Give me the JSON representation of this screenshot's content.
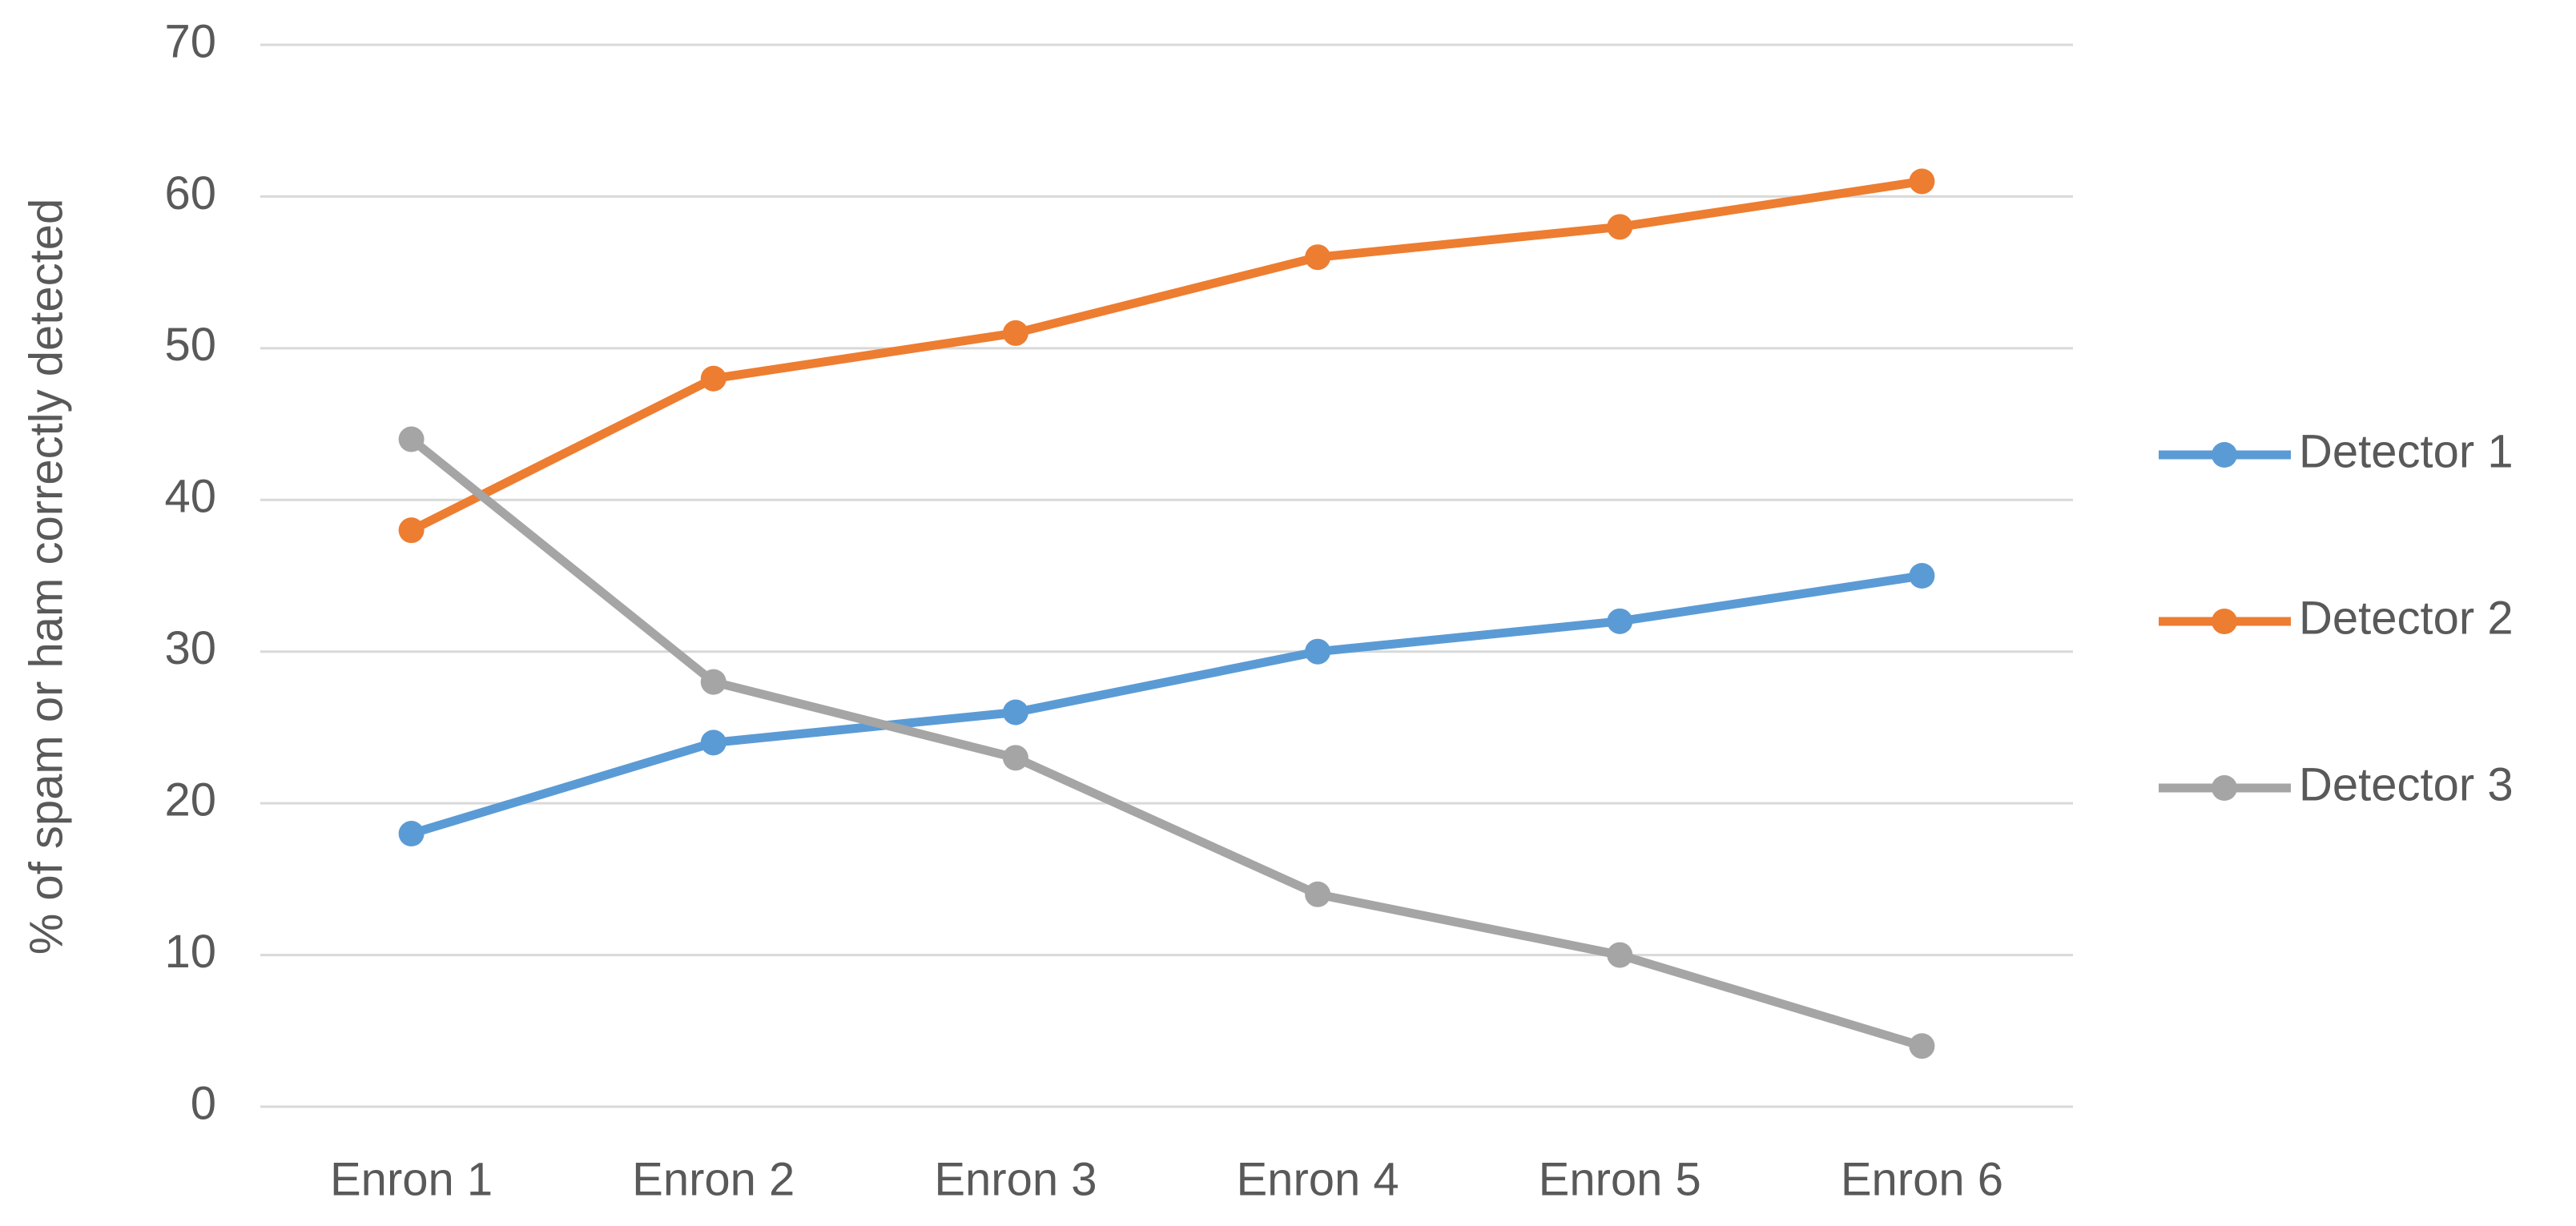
{
  "chart_data": {
    "type": "line",
    "y_label": "% of spam or ham correctly detected",
    "categories": [
      "Enron 1",
      "Enron 2",
      "Enron 3",
      "Enron 4",
      "Enron 5",
      "Enron 6"
    ],
    "series": [
      {
        "name": "Detector 1",
        "color": "#5b9bd5",
        "values": [
          18,
          24,
          26,
          30,
          32,
          35
        ]
      },
      {
        "name": "Detector 2",
        "color": "#ed7d31",
        "values": [
          38,
          48,
          51,
          56,
          58,
          61
        ]
      },
      {
        "name": "Detector 3",
        "color": "#a5a5a5",
        "values": [
          44,
          28,
          23,
          14,
          10,
          4
        ]
      }
    ],
    "ylim": [
      0,
      70
    ],
    "yticks": [
      0,
      10,
      20,
      30,
      40,
      50,
      60,
      70
    ],
    "grid": true,
    "legend": "right"
  }
}
